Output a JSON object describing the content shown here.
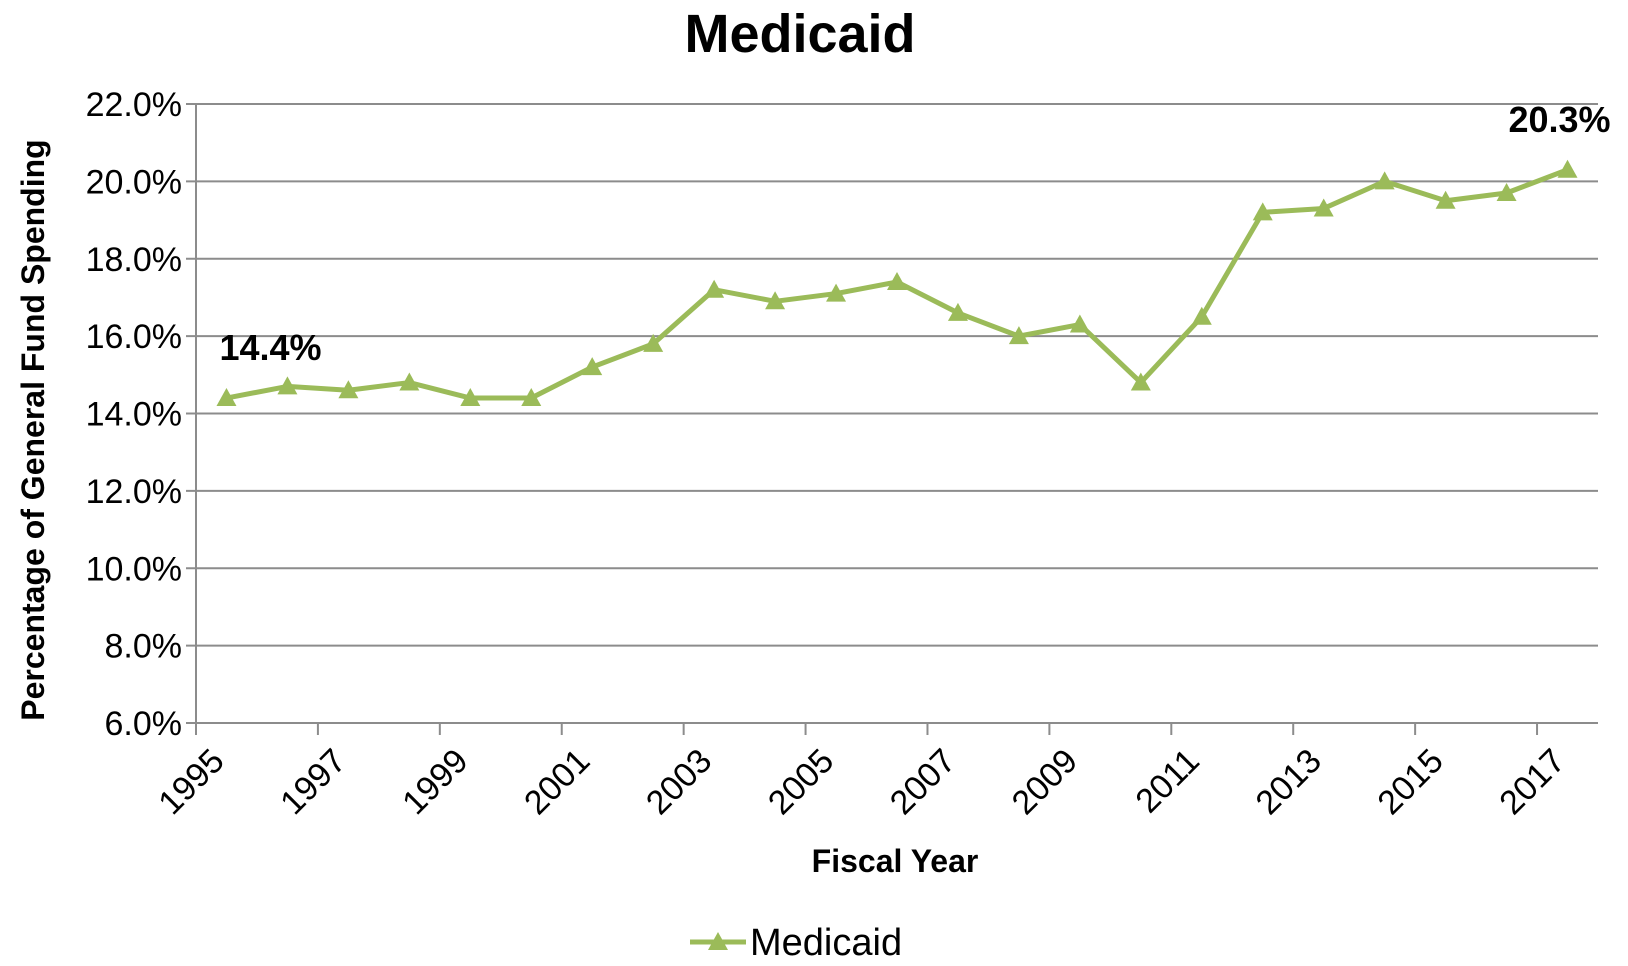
{
  "chart_data": {
    "type": "line",
    "title": "Medicaid",
    "xlabel": "Fiscal Year",
    "ylabel": "Percentage of General Fund Spending",
    "x": [
      1995,
      1996,
      1997,
      1998,
      1999,
      2000,
      2001,
      2002,
      2003,
      2004,
      2005,
      2006,
      2007,
      2008,
      2009,
      2010,
      2011,
      2012,
      2013,
      2014,
      2015,
      2016,
      2017
    ],
    "x_tick_labels": [
      "1995",
      "1997",
      "1999",
      "2001",
      "2003",
      "2005",
      "2007",
      "2009",
      "2011",
      "2013",
      "2015",
      "2017"
    ],
    "ylim": [
      6.0,
      22.0
    ],
    "y_ticks": [
      6.0,
      8.0,
      10.0,
      12.0,
      14.0,
      16.0,
      18.0,
      20.0,
      22.0
    ],
    "y_tick_labels": [
      "6.0%",
      "8.0%",
      "10.0%",
      "12.0%",
      "14.0%",
      "16.0%",
      "18.0%",
      "20.0%",
      "22.0%"
    ],
    "grid": "horizontal",
    "legend_position": "bottom",
    "series": [
      {
        "name": "Medicaid",
        "color": "#9bbb59",
        "marker": "triangle",
        "values": [
          14.4,
          14.7,
          14.6,
          14.8,
          14.4,
          14.4,
          15.2,
          15.8,
          17.2,
          16.9,
          17.1,
          17.4,
          16.6,
          16.0,
          16.3,
          14.8,
          16.5,
          19.2,
          19.3,
          20.0,
          19.5,
          19.7,
          20.3
        ]
      }
    ],
    "annotations": [
      {
        "text": "14.4%",
        "x": 1995
      },
      {
        "text": "20.3%",
        "x": 2017
      }
    ]
  }
}
